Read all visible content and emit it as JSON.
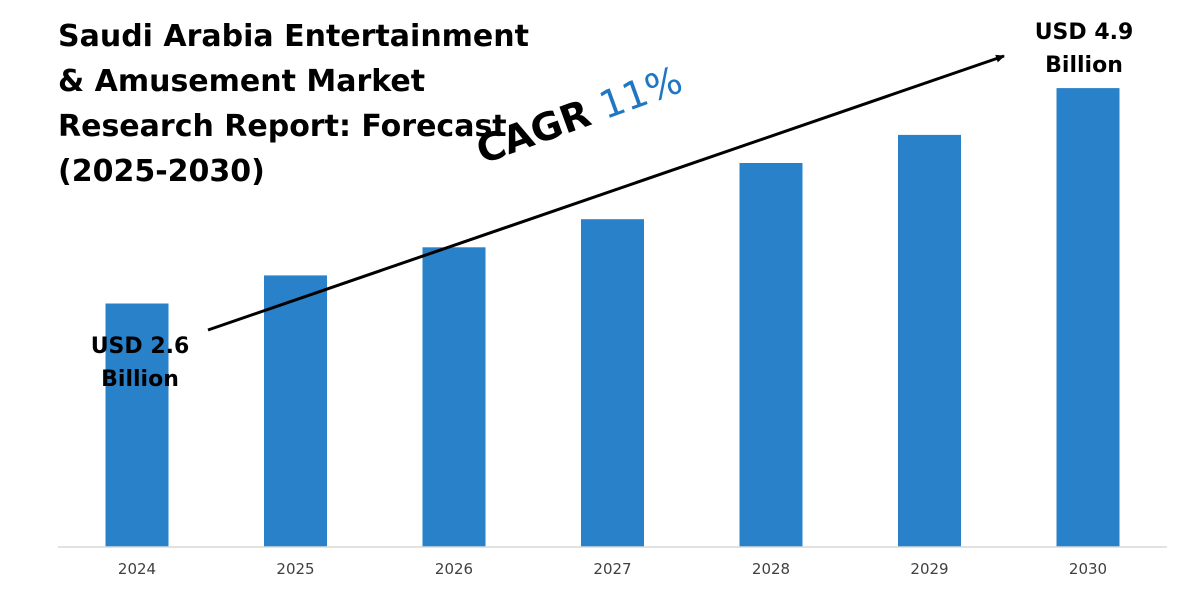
{
  "title_lines": [
    "Saudi Arabia Entertainment",
    "& Amusement Market",
    "Research Report: Forecast",
    "(2025-2030)"
  ],
  "cagr": {
    "label": "CAGR",
    "value": "11%",
    "label_color": "#000000",
    "value_color": "#1f77c4"
  },
  "callouts": {
    "start": {
      "line1": "USD 2.6",
      "line2": "Billion"
    },
    "end": {
      "line1": "USD 4.9",
      "line2": "Billion"
    }
  },
  "colors": {
    "bar": "#2981ca",
    "axis": "#d9d9d9",
    "arrow": "#000000"
  },
  "chart_data": {
    "type": "bar",
    "categories": [
      "2024",
      "2025",
      "2026",
      "2027",
      "2028",
      "2029",
      "2030"
    ],
    "values": [
      2.6,
      2.9,
      3.2,
      3.5,
      4.1,
      4.4,
      4.9
    ],
    "ylim": [
      0,
      5.2
    ],
    "title": "Saudi Arabia Entertainment & Amusement Market Research Report: Forecast (2025-2030)",
    "xlabel": "",
    "ylabel": "",
    "grid": false,
    "legend": "none",
    "annotations": [
      "USD 2.6 Billion",
      "USD 4.9 Billion",
      "CAGR 11%"
    ]
  }
}
